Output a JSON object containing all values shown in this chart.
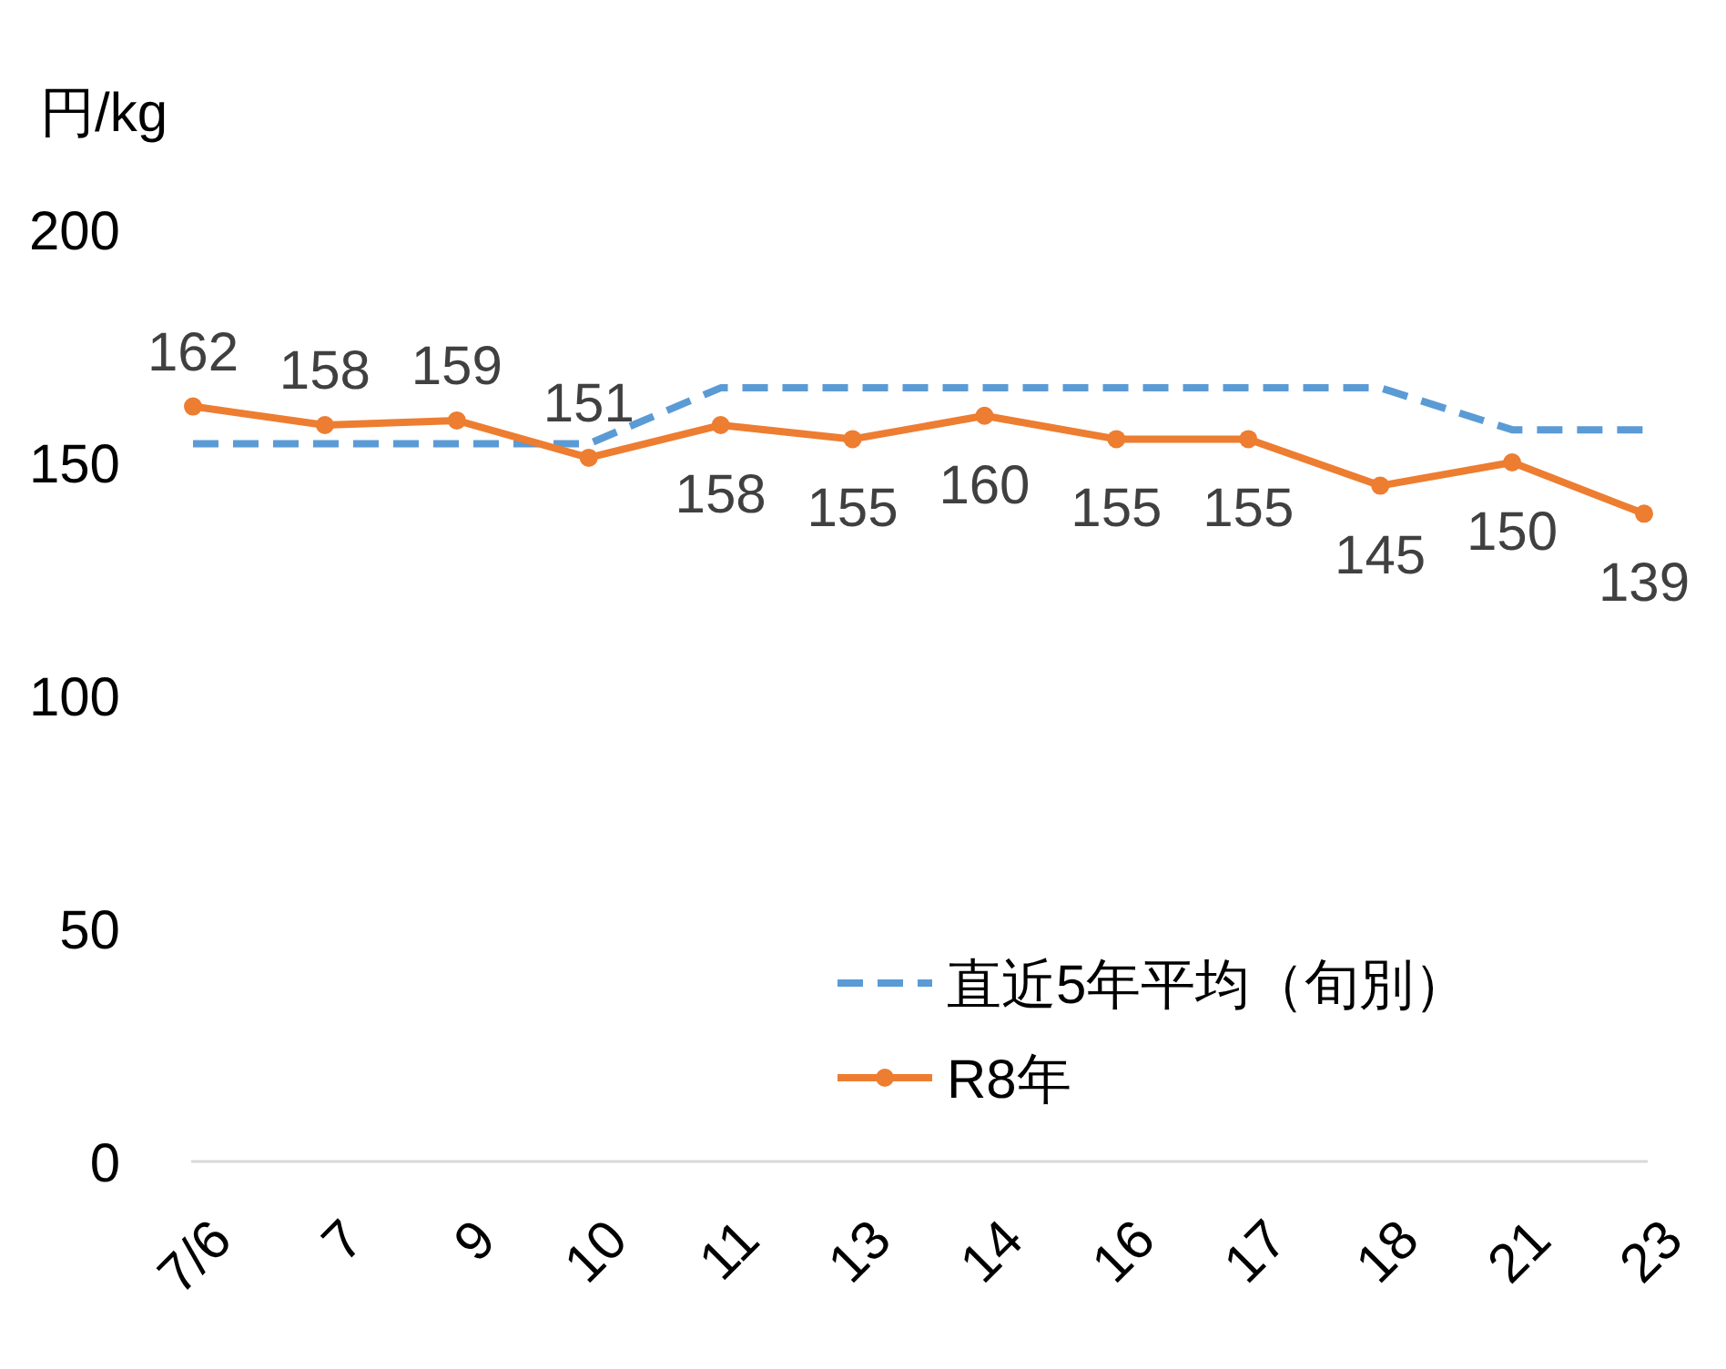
{
  "chart_data": {
    "type": "line",
    "ylabel": "円/kg",
    "categories": [
      "7/6",
      "7",
      "9",
      "10",
      "11",
      "13",
      "14",
      "16",
      "17",
      "18",
      "21",
      "23"
    ],
    "ylim": [
      0,
      200
    ],
    "yticks": [
      0,
      50,
      100,
      150,
      200
    ],
    "grid": false,
    "legend": "bottom right",
    "series": [
      {
        "name": "直近5年平均（旬別）",
        "color": "#5b9bd5",
        "line_style": "dashed",
        "marker": "none",
        "values": [
          154,
          154,
          154,
          154,
          166,
          166,
          166,
          166,
          166,
          166,
          157,
          157
        ]
      },
      {
        "name": "R8年",
        "color": "#ed7d31",
        "line_style": "solid",
        "marker": "circle",
        "values": [
          162,
          158,
          159,
          151,
          158,
          155,
          160,
          155,
          155,
          145,
          150,
          139
        ],
        "value_labels": [
          "162",
          "158",
          "159",
          "151",
          "158",
          "155",
          "160",
          "155",
          "155",
          "145",
          "150",
          "139"
        ]
      }
    ]
  }
}
